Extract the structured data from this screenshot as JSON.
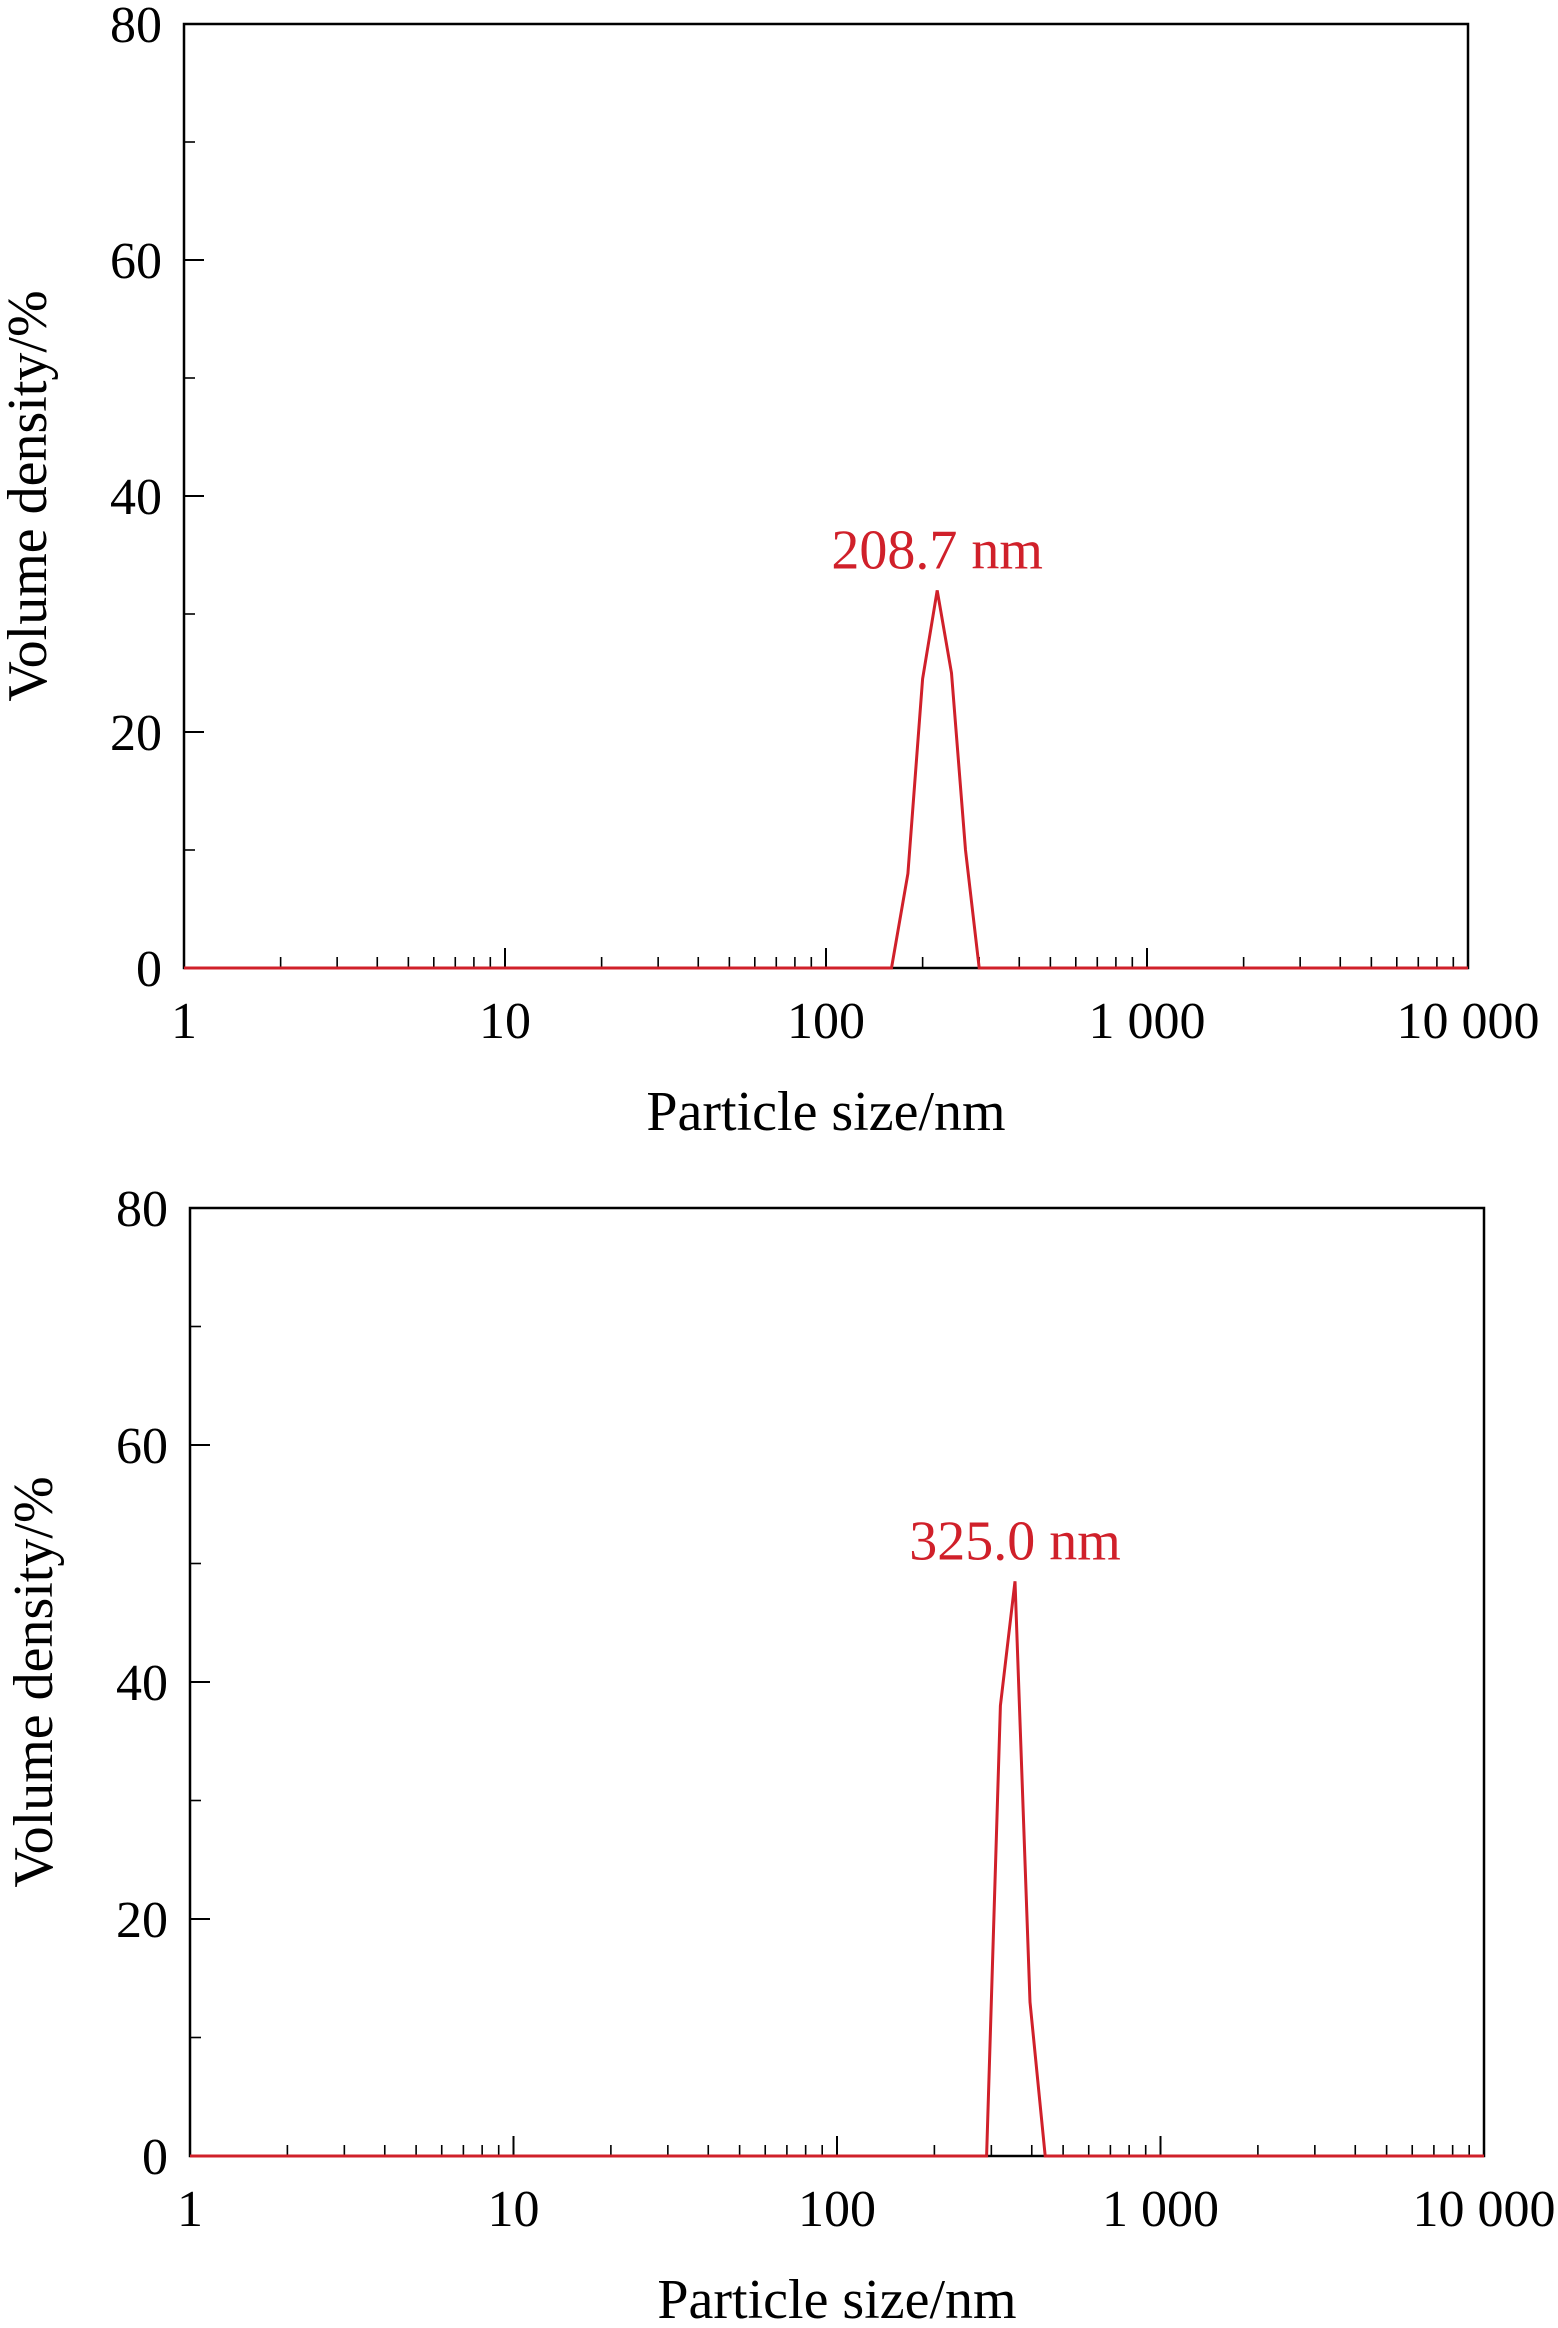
{
  "chart_data": [
    {
      "type": "line",
      "title": "",
      "xlabel": "Particle size/nm",
      "ylabel": "Volume density/%",
      "xscale": "log",
      "xlim": [
        1,
        10000
      ],
      "ylim": [
        0,
        80
      ],
      "xticks": [
        {
          "value": 1,
          "label": "1"
        },
        {
          "value": 10,
          "label": "10"
        },
        {
          "value": 100,
          "label": "100"
        },
        {
          "value": 1000,
          "label": "1 000"
        },
        {
          "value": 10000,
          "label": "10 000"
        }
      ],
      "yticks": [
        {
          "value": 0,
          "label": "0"
        },
        {
          "value": 20,
          "label": "20"
        },
        {
          "value": 40,
          "label": "40"
        },
        {
          "value": 60,
          "label": "60"
        },
        {
          "value": 80,
          "label": "80"
        }
      ],
      "yminor": [
        10,
        30,
        50,
        70
      ],
      "grid": false,
      "series": [
        {
          "color": "#d0202a",
          "points": [
            [
              1,
              0
            ],
            [
              160,
              0
            ],
            [
              180,
              8
            ],
            [
              200,
              24.5
            ],
            [
              222,
              32
            ],
            [
              246,
              25
            ],
            [
              272,
              10
            ],
            [
              300,
              0
            ],
            [
              10000,
              0
            ]
          ]
        }
      ],
      "annotations": [
        {
          "text": "208.7 nm",
          "x": 222,
          "y": 32,
          "color": "#d0202a"
        }
      ]
    },
    {
      "type": "line",
      "title": "",
      "xlabel": "Particle size/nm",
      "ylabel": "Volume density/%",
      "xscale": "log",
      "xlim": [
        1,
        10000
      ],
      "ylim": [
        0,
        80
      ],
      "xticks": [
        {
          "value": 1,
          "label": "1"
        },
        {
          "value": 10,
          "label": "10"
        },
        {
          "value": 100,
          "label": "100"
        },
        {
          "value": 1000,
          "label": "1 000"
        },
        {
          "value": 10000,
          "label": "10 000"
        }
      ],
      "yticks": [
        {
          "value": 0,
          "label": "0"
        },
        {
          "value": 20,
          "label": "20"
        },
        {
          "value": 40,
          "label": "40"
        },
        {
          "value": 60,
          "label": "60"
        },
        {
          "value": 80,
          "label": "80"
        }
      ],
      "yminor": [
        10,
        30,
        50,
        70
      ],
      "grid": false,
      "series": [
        {
          "color": "#d0202a",
          "points": [
            [
              1,
              0
            ],
            [
              290,
              0
            ],
            [
              320,
              38
            ],
            [
              355,
              48.5
            ],
            [
              395,
              13
            ],
            [
              440,
              0
            ],
            [
              10000,
              0
            ]
          ]
        }
      ],
      "annotations": [
        {
          "text": "325.0 nm",
          "x": 355,
          "y": 48.5,
          "color": "#d0202a"
        }
      ]
    }
  ]
}
